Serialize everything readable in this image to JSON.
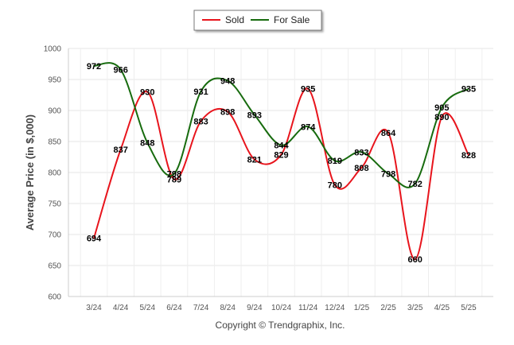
{
  "chart_data": {
    "type": "line",
    "ylabel": "Average Price (in $,000)",
    "credit": "Copyright © Trendgraphix, Inc.",
    "categories": [
      "3/24",
      "4/24",
      "5/24",
      "6/24",
      "7/24",
      "8/24",
      "9/24",
      "10/24",
      "11/24",
      "12/24",
      "1/25",
      "2/25",
      "3/25",
      "4/25",
      "5/25"
    ],
    "ylim": [
      600,
      1000
    ],
    "yticks": [
      600,
      650,
      700,
      750,
      800,
      850,
      900,
      950,
      1000
    ],
    "grid": true,
    "legend_position": "top-center",
    "series": [
      {
        "name": "Sold",
        "color": "#e8141c",
        "values": [
          694,
          837,
          930,
          789,
          883,
          898,
          821,
          829,
          935,
          780,
          808,
          864,
          660,
          890,
          828
        ]
      },
      {
        "name": "For Sale",
        "color": "#176b0e",
        "values": [
          972,
          966,
          848,
          798,
          931,
          948,
          893,
          844,
          874,
          819,
          833,
          798,
          782,
          905,
          935
        ]
      }
    ]
  }
}
